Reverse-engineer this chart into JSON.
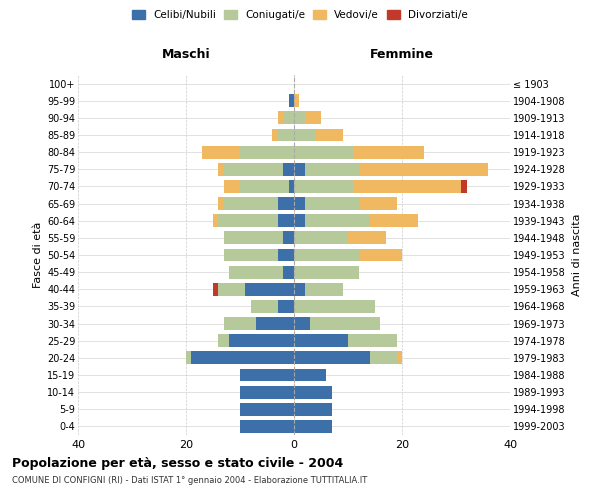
{
  "age_groups": [
    "0-4",
    "5-9",
    "10-14",
    "15-19",
    "20-24",
    "25-29",
    "30-34",
    "35-39",
    "40-44",
    "45-49",
    "50-54",
    "55-59",
    "60-64",
    "65-69",
    "70-74",
    "75-79",
    "80-84",
    "85-89",
    "90-94",
    "95-99",
    "100+"
  ],
  "birth_years": [
    "1999-2003",
    "1994-1998",
    "1989-1993",
    "1984-1988",
    "1979-1983",
    "1974-1978",
    "1969-1973",
    "1964-1968",
    "1959-1963",
    "1954-1958",
    "1949-1953",
    "1944-1948",
    "1939-1943",
    "1934-1938",
    "1929-1933",
    "1924-1928",
    "1919-1923",
    "1914-1918",
    "1909-1913",
    "1904-1908",
    "≤ 1903"
  ],
  "colors": {
    "celibi": "#3d6fa8",
    "coniugati": "#b5c99a",
    "vedovi": "#f0b860",
    "divorziati": "#c0392b"
  },
  "maschi": {
    "celibi": [
      10,
      10,
      10,
      10,
      19,
      12,
      7,
      3,
      9,
      2,
      3,
      2,
      3,
      3,
      1,
      2,
      0,
      0,
      0,
      1,
      0
    ],
    "coniugati": [
      0,
      0,
      0,
      0,
      1,
      2,
      6,
      5,
      5,
      10,
      10,
      11,
      11,
      10,
      9,
      11,
      10,
      3,
      2,
      0,
      0
    ],
    "vedovi": [
      0,
      0,
      0,
      0,
      0,
      0,
      0,
      0,
      0,
      0,
      0,
      0,
      1,
      1,
      3,
      1,
      7,
      1,
      1,
      0,
      0
    ],
    "divorziati": [
      0,
      0,
      0,
      0,
      0,
      0,
      0,
      0,
      1,
      0,
      0,
      0,
      0,
      0,
      0,
      0,
      0,
      0,
      0,
      0,
      0
    ]
  },
  "femmine": {
    "celibi": [
      7,
      7,
      7,
      6,
      14,
      10,
      3,
      0,
      2,
      0,
      0,
      0,
      2,
      2,
      0,
      2,
      0,
      0,
      0,
      0,
      0
    ],
    "coniugati": [
      0,
      0,
      0,
      0,
      5,
      9,
      13,
      15,
      7,
      12,
      12,
      10,
      12,
      10,
      11,
      10,
      11,
      4,
      2,
      0,
      0
    ],
    "vedovi": [
      0,
      0,
      0,
      0,
      1,
      0,
      0,
      0,
      0,
      0,
      8,
      7,
      9,
      7,
      20,
      24,
      13,
      5,
      3,
      1,
      0
    ],
    "divorziati": [
      0,
      0,
      0,
      0,
      0,
      0,
      0,
      0,
      0,
      0,
      0,
      0,
      0,
      0,
      1,
      0,
      0,
      0,
      0,
      0,
      0
    ]
  },
  "xlim": 40,
  "title": "Popolazione per età, sesso e stato civile - 2004",
  "subtitle": "COMUNE DI CONFIGNI (RI) - Dati ISTAT 1° gennaio 2004 - Elaborazione TUTTITALIA.IT",
  "ylabel_left": "Fasce di età",
  "ylabel_right": "Anni di nascita",
  "xlabel_left": "Maschi",
  "xlabel_right": "Femmine",
  "legend_labels": [
    "Celibi/Nubili",
    "Coniugati/e",
    "Vedovi/e",
    "Divorziati/e"
  ]
}
